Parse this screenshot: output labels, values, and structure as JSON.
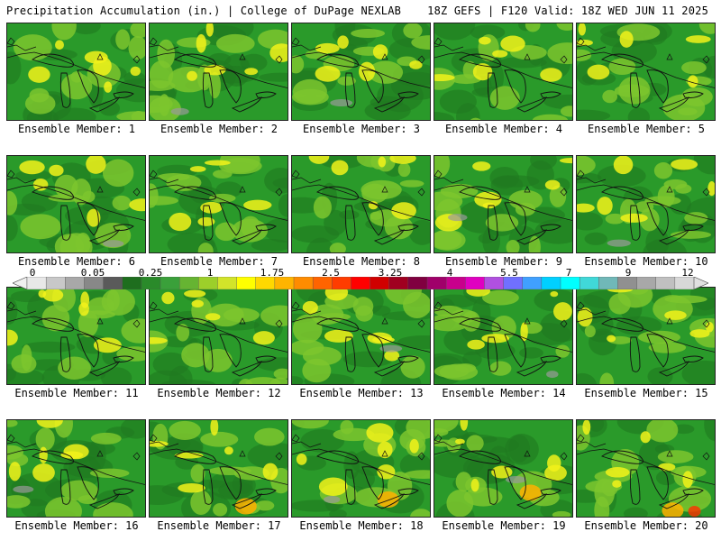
{
  "header": {
    "title": "Precipitation Accumulation (in.) | College of DuPage NEXLAB",
    "run": "18Z GEFS | F120 Valid: 18Z WED JUN 11 2025"
  },
  "colorbar": {
    "labels": [
      "0",
      "0.05",
      "0.25",
      "1",
      "1.75",
      "2.5",
      "3.25",
      "4",
      "5.5",
      "7",
      "9",
      "12"
    ],
    "colors": [
      "#e8e8e8",
      "#c8c8c8",
      "#a8a8a8",
      "#888888",
      "#5a5a5a",
      "#1e6e1e",
      "#2a8a2a",
      "#3aa03a",
      "#66b432",
      "#9ccf2a",
      "#d2e42a",
      "#ffff00",
      "#ffd800",
      "#ffb400",
      "#ff8c00",
      "#ff6400",
      "#ff3c00",
      "#ff0000",
      "#d00000",
      "#a00020",
      "#800040",
      "#a0006a",
      "#c8008c",
      "#e000c0",
      "#b050e0",
      "#7070ff",
      "#40a0ff",
      "#00d0ff",
      "#00ffff",
      "#40d8d8",
      "#70b8b8",
      "#909090",
      "#a8a8a8",
      "#c0c0c0",
      "#d8d8d8"
    ],
    "left_arrow_color": "#f0f0f0",
    "right_arrow_color": "#e0e0e0"
  },
  "members": [
    {
      "label": "Ensemble Member: 1"
    },
    {
      "label": "Ensemble Member: 2"
    },
    {
      "label": "Ensemble Member: 3"
    },
    {
      "label": "Ensemble Member: 4"
    },
    {
      "label": "Ensemble Member: 5"
    },
    {
      "label": "Ensemble Member: 6"
    },
    {
      "label": "Ensemble Member: 7"
    },
    {
      "label": "Ensemble Member: 8"
    },
    {
      "label": "Ensemble Member: 9"
    },
    {
      "label": "Ensemble Member: 10"
    },
    {
      "label": "Ensemble Member: 11"
    },
    {
      "label": "Ensemble Member: 12"
    },
    {
      "label": "Ensemble Member: 13"
    },
    {
      "label": "Ensemble Member: 14"
    },
    {
      "label": "Ensemble Member: 15"
    },
    {
      "label": "Ensemble Member: 16"
    },
    {
      "label": "Ensemble Member: 17"
    },
    {
      "label": "Ensemble Member: 18"
    },
    {
      "label": "Ensemble Member: 19"
    },
    {
      "label": "Ensemble Member: 20"
    }
  ],
  "map_colors": {
    "base_green": "#2a9a2a",
    "dark_green": "#1f7a1f",
    "light_green": "#7cc62e",
    "yellow": "#f2f21a",
    "orange": "#ffb000",
    "red": "#ff3000",
    "gray": "#9a9a9a",
    "outline": "#111111"
  }
}
